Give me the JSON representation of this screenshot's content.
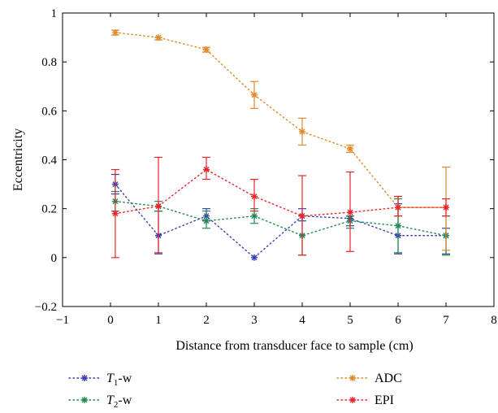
{
  "chart_data": {
    "type": "line",
    "xlabel": "Distance from transducer face to sample (cm)",
    "ylabel": "Eccentricity",
    "xlim": [
      -1,
      8
    ],
    "ylim": [
      -0.2,
      1
    ],
    "xticks": [
      -1,
      0,
      1,
      2,
      3,
      4,
      5,
      6,
      7,
      8
    ],
    "yticks": [
      -0.2,
      0,
      0.2,
      0.4,
      0.6,
      0.8,
      1
    ],
    "xtick_labels": [
      "−1",
      "0",
      "1",
      "2",
      "3",
      "4",
      "5",
      "6",
      "7",
      "8"
    ],
    "ytick_labels": [
      "−0.2",
      "0",
      "0.2",
      "0.4",
      "0.6",
      "0.8",
      "1"
    ],
    "grid": false,
    "legend_placement": "below",
    "x": [
      0.1,
      1,
      2,
      3,
      4,
      5,
      6,
      7
    ],
    "series": [
      {
        "name": "T1-w",
        "label_main": "T",
        "label_sub": "1",
        "label_rest": "-w",
        "color": "#3a3fb0",
        "values": [
          0.3,
          0.09,
          0.17,
          0.0,
          0.17,
          0.16,
          0.09,
          0.09
        ],
        "err_low": [
          0.26,
          0.015,
          0.15,
          0,
          0.15,
          0.13,
          0.015,
          0.015
        ],
        "err_high": [
          0.34,
          0.19,
          0.2,
          0,
          0.2,
          0.17,
          0.22,
          0.12
        ]
      },
      {
        "name": "T2-w",
        "label_main": "T",
        "label_sub": "2",
        "label_rest": "-w",
        "color": "#1f8a52",
        "values": [
          0.23,
          0.21,
          0.15,
          0.17,
          0.09,
          0.15,
          0.13,
          0.09
        ],
        "err_low": [
          0.19,
          0.19,
          0.12,
          0.14,
          0.01,
          0.12,
          0.02,
          0.01
        ],
        "err_high": [
          0.27,
          0.23,
          0.19,
          0.2,
          0.17,
          0.17,
          0.24,
          0.17
        ]
      },
      {
        "name": "ADC",
        "label_main": "ADC",
        "label_sub": "",
        "label_rest": "",
        "color": "#e08a2a",
        "values": [
          0.92,
          0.9,
          0.85,
          0.665,
          0.515,
          0.445,
          0.205,
          0.205
        ],
        "err_low": [
          0.91,
          0.89,
          0.84,
          0.61,
          0.46,
          0.43,
          0.17,
          0.03
        ],
        "err_high": [
          0.93,
          0.9,
          0.86,
          0.72,
          0.57,
          0.46,
          0.25,
          0.37
        ]
      },
      {
        "name": "EPI",
        "label_main": "EPI",
        "label_sub": "",
        "label_rest": "",
        "color": "#e8242a",
        "values": [
          0.18,
          0.21,
          0.36,
          0.25,
          0.17,
          0.185,
          0.205,
          0.205
        ],
        "err_low": [
          0.0,
          0.02,
          0.32,
          0.19,
          0.01,
          0.025,
          0.17,
          0.17
        ],
        "err_high": [
          0.36,
          0.41,
          0.41,
          0.32,
          0.335,
          0.35,
          0.25,
          0.24
        ]
      }
    ]
  }
}
